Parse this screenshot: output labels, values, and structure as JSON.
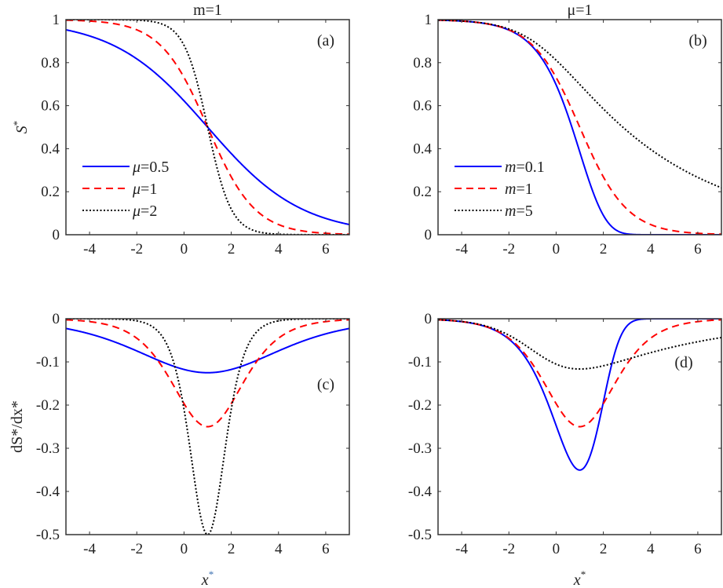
{
  "chart_data": [
    {
      "id": "a",
      "type": "line",
      "panel_label": "(a)",
      "title": "m=1",
      "title_var": "m",
      "title_val": "=1",
      "quantity": "S",
      "ylabel": "S*",
      "xlabel": "",
      "xlim": [
        -5,
        7
      ],
      "ylim": [
        0,
        1
      ],
      "xticks": [
        -4,
        -2,
        0,
        2,
        4,
        6
      ],
      "yticks": [
        0,
        0.2,
        0.4,
        0.6,
        0.8,
        1
      ],
      "ytick_labels": [
        "0",
        "0.2",
        "0.4",
        "0.6",
        "0.8",
        "1"
      ],
      "model": "S = (1 + m*exp(mu*(x - 1)))^(-1/m)",
      "series": [
        {
          "name": "μ=0.5",
          "var": "μ",
          "val": "=0.5",
          "mu": 0.5,
          "m": 1,
          "color": "#0000ff",
          "style": "solid"
        },
        {
          "name": "μ=1",
          "var": "μ",
          "val": "=1",
          "mu": 1,
          "m": 1,
          "color": "#ff0000",
          "style": "dashed"
        },
        {
          "name": "μ=2",
          "var": "μ",
          "val": "=2",
          "mu": 2,
          "m": 1,
          "color": "#000000",
          "style": "dotted"
        }
      ],
      "legend": "bottom-left"
    },
    {
      "id": "b",
      "type": "line",
      "panel_label": "(b)",
      "title": "μ=1",
      "title_var": "μ",
      "title_val": "=1",
      "quantity": "S",
      "ylabel": "",
      "xlabel": "",
      "xlim": [
        -5,
        7
      ],
      "ylim": [
        0,
        1
      ],
      "xticks": [
        -4,
        -2,
        0,
        2,
        4,
        6
      ],
      "yticks": [
        0,
        0.2,
        0.4,
        0.6,
        0.8,
        1
      ],
      "ytick_labels": [
        "0",
        "0.2",
        "0.4",
        "0.6",
        "0.8",
        "1"
      ],
      "model": "S = (1 + m*exp(mu*(x - 1)))^(-1/m)",
      "series": [
        {
          "name": "m=0.1",
          "var": "m",
          "val": "=0.1",
          "mu": 1,
          "m": 0.1,
          "color": "#0000ff",
          "style": "solid"
        },
        {
          "name": "m=1",
          "var": "m",
          "val": "=1",
          "mu": 1,
          "m": 1,
          "color": "#ff0000",
          "style": "dashed"
        },
        {
          "name": "m=5",
          "var": "m",
          "val": "=5",
          "mu": 1,
          "m": 5,
          "color": "#000000",
          "style": "dotted"
        }
      ],
      "legend": "bottom-left"
    },
    {
      "id": "c",
      "type": "line",
      "panel_label": "(c)",
      "title": "",
      "quantity": "dS",
      "ylabel": "dS*/dx*",
      "xlabel": "x*",
      "xlim": [
        -5,
        7
      ],
      "ylim": [
        -0.5,
        0
      ],
      "xticks": [
        -4,
        -2,
        0,
        2,
        4,
        6
      ],
      "yticks": [
        -0.5,
        -0.4,
        -0.3,
        -0.2,
        -0.1,
        0
      ],
      "ytick_labels": [
        "-0.5",
        "-0.4",
        "-0.3",
        "-0.2",
        "-0.1",
        "0"
      ],
      "model": "dS/dx of panel (a) curves",
      "series": [
        {
          "name": "μ=0.5",
          "mu": 0.5,
          "m": 1,
          "color": "#0000ff",
          "style": "solid",
          "min": -0.125
        },
        {
          "name": "μ=1",
          "mu": 1,
          "m": 1,
          "color": "#ff0000",
          "style": "dashed",
          "min": -0.25
        },
        {
          "name": "μ=2",
          "mu": 2,
          "m": 1,
          "color": "#000000",
          "style": "dotted",
          "min": -0.5
        }
      ]
    },
    {
      "id": "d",
      "type": "line",
      "panel_label": "(d)",
      "title": "",
      "quantity": "dS",
      "ylabel": "",
      "xlabel": "x*",
      "xlim": [
        -5,
        7
      ],
      "ylim": [
        -0.5,
        0
      ],
      "xticks": [
        -4,
        -2,
        0,
        2,
        4,
        6
      ],
      "yticks": [
        -0.5,
        -0.4,
        -0.3,
        -0.2,
        -0.1,
        0
      ],
      "ytick_labels": [
        "-0.5",
        "-0.4",
        "-0.3",
        "-0.2",
        "-0.1",
        "0"
      ],
      "model": "dS/dx of panel (b) curves",
      "series": [
        {
          "name": "m=0.1",
          "mu": 1,
          "m": 0.1,
          "color": "#0000ff",
          "style": "solid",
          "min": -0.35
        },
        {
          "name": "m=1",
          "mu": 1,
          "m": 1,
          "color": "#ff0000",
          "style": "dashed",
          "min": -0.25
        },
        {
          "name": "m=5",
          "mu": 1,
          "m": 5,
          "color": "#000000",
          "style": "dotted",
          "min": -0.117
        }
      ]
    }
  ]
}
